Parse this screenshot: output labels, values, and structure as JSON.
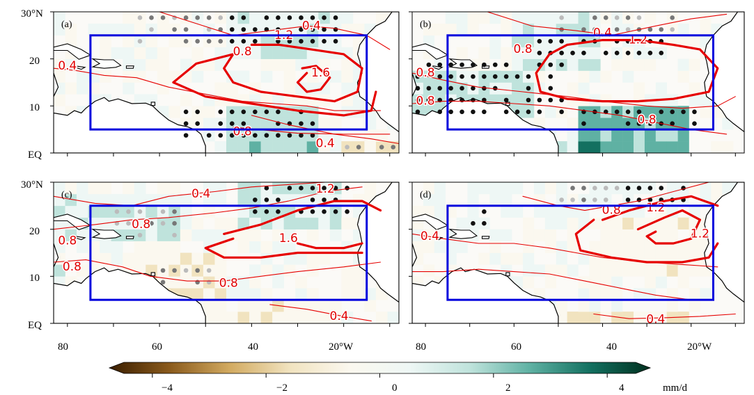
{
  "colors": {
    "contour": "#e60000",
    "box": "#0000dd",
    "coast": "#000000",
    "frame": "#000000"
  },
  "map": {
    "lon_range": [
      -83,
      -8
    ],
    "lat_range": [
      0,
      30
    ],
    "box": {
      "lon": [
        -75,
        -15
      ],
      "lat": [
        5,
        25
      ]
    },
    "lat_ticks": [
      {
        "value": 30,
        "label": "30°N"
      },
      {
        "value": 20,
        "label": "20"
      },
      {
        "value": 10,
        "label": "10"
      },
      {
        "value": 0,
        "label": "EQ"
      }
    ],
    "lon_ticks": [
      {
        "value": -80,
        "label": "80"
      },
      {
        "value": -60,
        "label": "60"
      },
      {
        "value": -40,
        "label": "40"
      },
      {
        "value": -20,
        "label": "20°W"
      }
    ]
  },
  "panels": [
    {
      "label": "(a)",
      "shading": "precipitation anomaly",
      "contour_labels": [
        {
          "text": "0.4",
          "lon": -80,
          "lat": 18.5
        },
        {
          "text": "0.4",
          "lon": -27,
          "lat": 27
        },
        {
          "text": "0.8",
          "lon": -42,
          "lat": 21.5
        },
        {
          "text": "1.2",
          "lon": -33,
          "lat": 25
        },
        {
          "text": "1.6",
          "lon": -25,
          "lat": 17
        },
        {
          "text": "0.8",
          "lon": -42,
          "lat": 4.5
        },
        {
          "text": "0.4",
          "lon": -24,
          "lat": 2
        }
      ],
      "dots": {
        "black": 58,
        "grey": 22
      }
    },
    {
      "label": "(b)",
      "shading": "precipitation anomaly",
      "contour_labels": [
        {
          "text": "0.4",
          "lon": -40,
          "lat": 25.5
        },
        {
          "text": "0.8",
          "lon": -58,
          "lat": 22
        },
        {
          "text": "1.2",
          "lon": -32,
          "lat": 24
        },
        {
          "text": "0.8",
          "lon": -80,
          "lat": 17
        },
        {
          "text": "0.8",
          "lon": -80,
          "lat": 11
        },
        {
          "text": "0.8",
          "lon": -30,
          "lat": 7
        }
      ],
      "dots": {
        "black": 96,
        "grey": 20
      }
    },
    {
      "label": "(c)",
      "shading": "precipitation anomaly",
      "contour_labels": [
        {
          "text": "0.4",
          "lon": -51,
          "lat": 27.5
        },
        {
          "text": "0.8",
          "lon": -64,
          "lat": 21
        },
        {
          "text": "1.2",
          "lon": -24,
          "lat": 28.5
        },
        {
          "text": "0.8",
          "lon": -80,
          "lat": 17.5
        },
        {
          "text": "0.8",
          "lon": -79,
          "lat": 12
        },
        {
          "text": "1.6",
          "lon": -32,
          "lat": 18
        },
        {
          "text": "0.8",
          "lon": -45,
          "lat": 8.5
        },
        {
          "text": "0.4",
          "lon": -21,
          "lat": 1.5
        }
      ],
      "dots": {
        "black": 27,
        "grey": 24
      }
    },
    {
      "label": "(d)",
      "shading": "precipitation anomaly",
      "contour_labels": [
        {
          "text": "0.4",
          "lon": -79,
          "lat": 18.5
        },
        {
          "text": "0.8",
          "lon": -38,
          "lat": 24
        },
        {
          "text": "1.2",
          "lon": -28,
          "lat": 24.5
        },
        {
          "text": "1.2",
          "lon": -18,
          "lat": 19
        },
        {
          "text": "0.4",
          "lon": -28,
          "lat": 0.8
        }
      ],
      "dots": {
        "black": 10,
        "grey": 10
      }
    }
  ],
  "colorbar": {
    "min": -4.5,
    "max": 4.5,
    "ticks": [
      {
        "value": -4,
        "label": "−4"
      },
      {
        "value": -2,
        "label": "−2"
      },
      {
        "value": 0,
        "label": "0"
      },
      {
        "value": 2,
        "label": "2"
      },
      {
        "value": 4,
        "label": "4"
      }
    ],
    "unit": "mm/d",
    "stops": [
      "#3a1e00",
      "#8a5a1c",
      "#d2aa60",
      "#f1e3bf",
      "#fbf8ef",
      "#eef7f5",
      "#bfe3dc",
      "#5fb1a3",
      "#137060",
      "#00301f"
    ]
  }
}
